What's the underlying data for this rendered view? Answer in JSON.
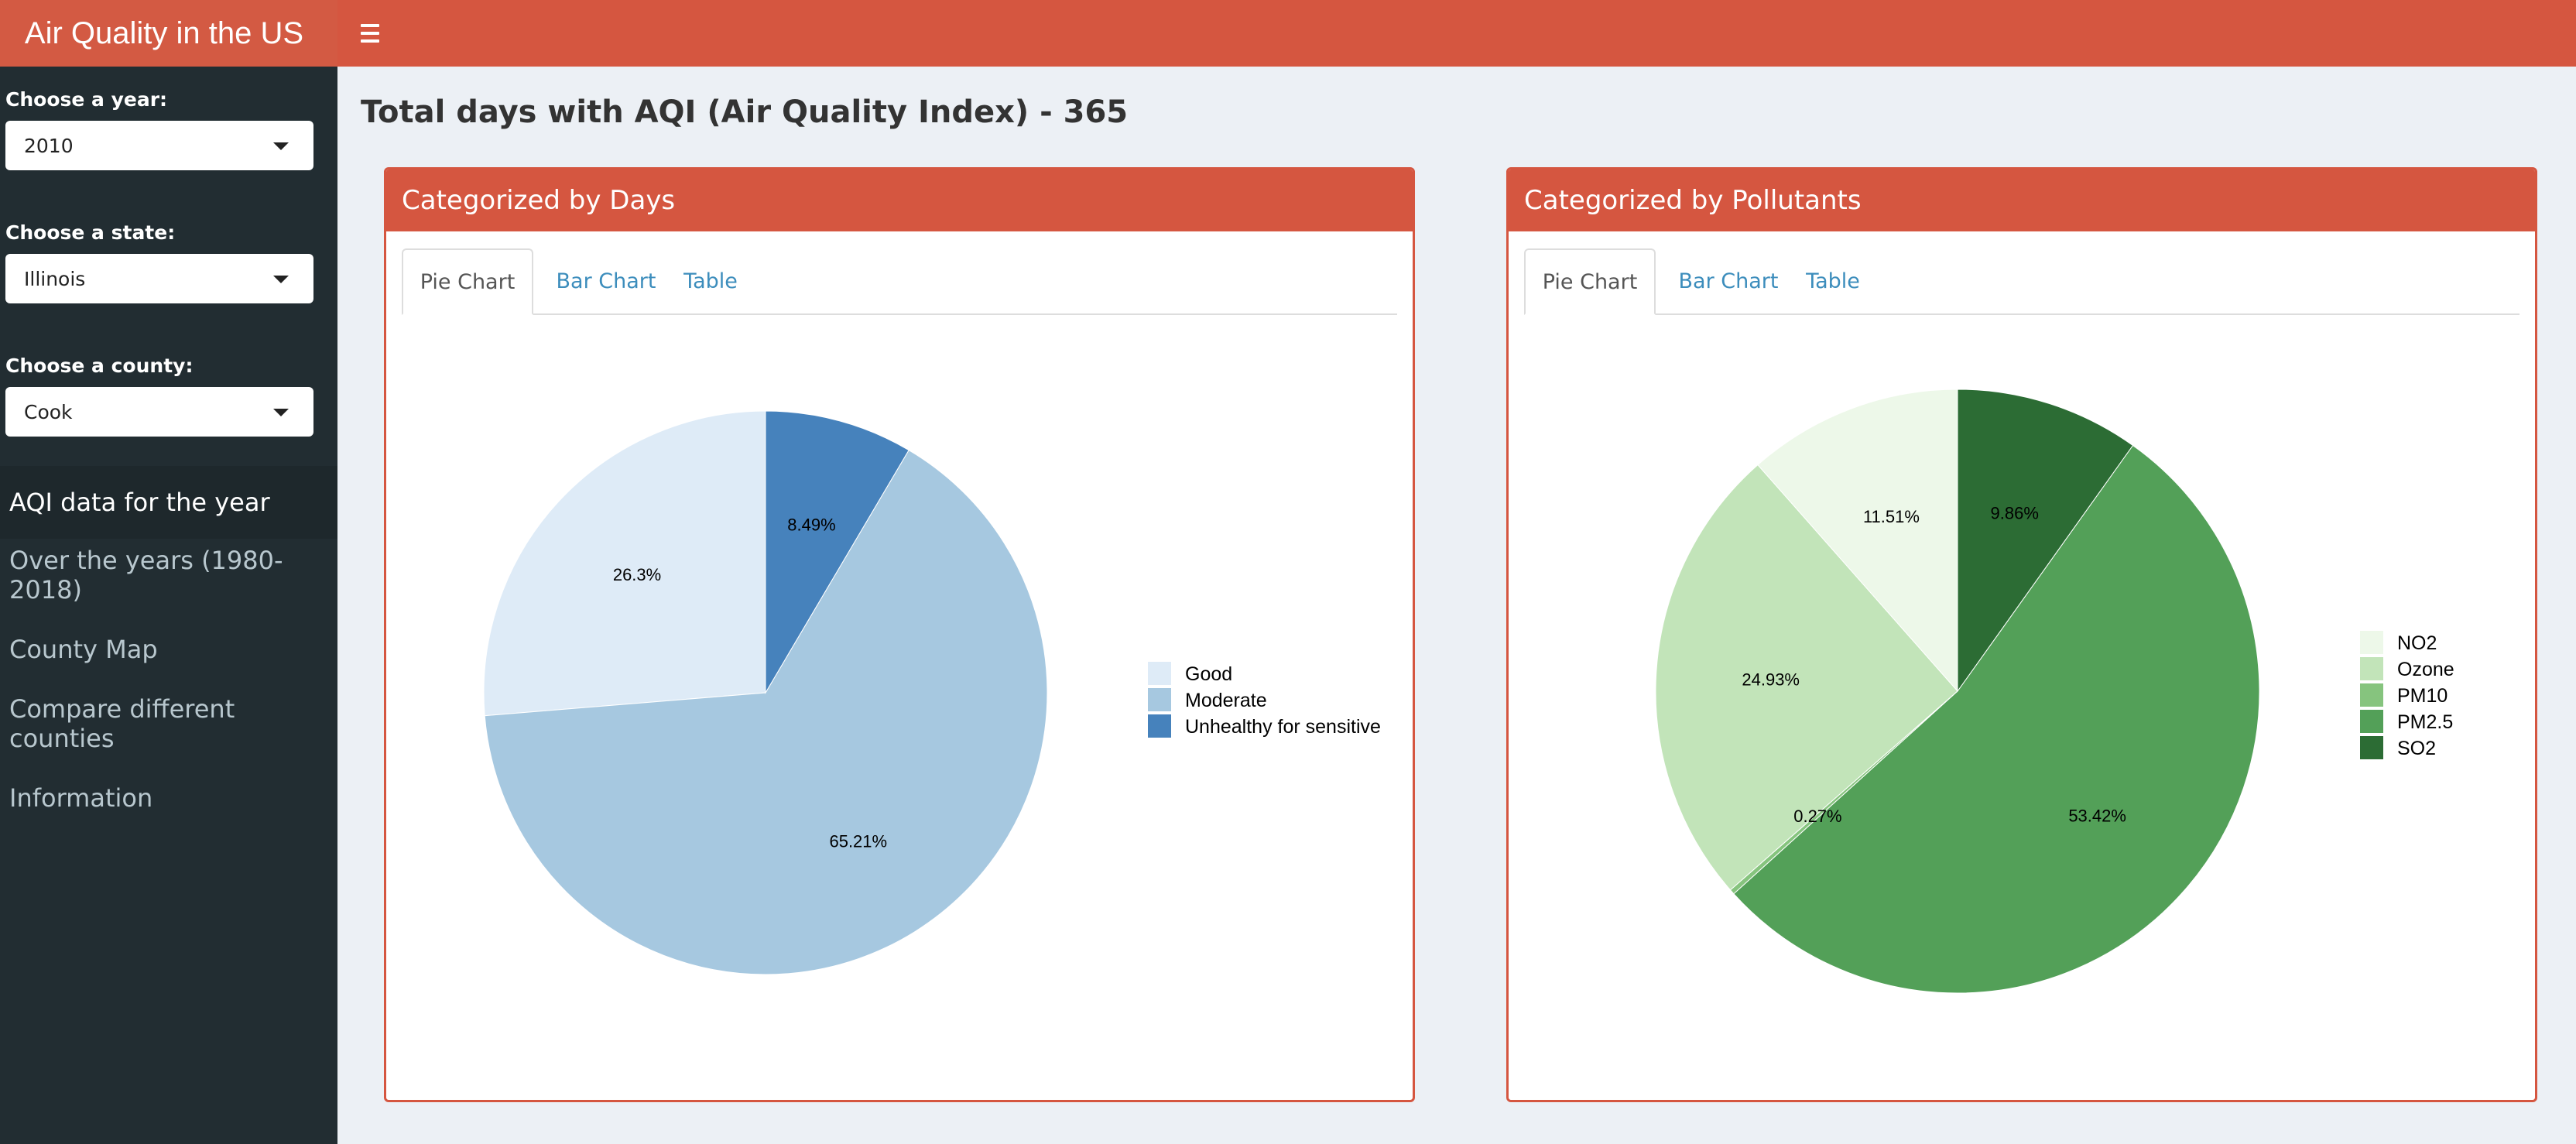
{
  "app": {
    "title": "Air Quality in the US"
  },
  "header": {
    "menu_icon": "hamburger-icon"
  },
  "sidebar": {
    "year": {
      "label": "Choose a year:",
      "value": "2010"
    },
    "state": {
      "label": "Choose a state:",
      "value": "Illinois"
    },
    "county": {
      "label": "Choose a county:",
      "value": "Cook"
    },
    "menu": [
      {
        "label": "AQI data for the year",
        "active": true
      },
      {
        "label": "Over the years (1980-2018)"
      },
      {
        "label": "County Map"
      },
      {
        "label": "Compare different counties"
      },
      {
        "label": "Information"
      }
    ]
  },
  "main": {
    "title": "Total days with AQI (Air Quality Index) - 365",
    "days_box": {
      "title": "Categorized by Days",
      "tabs": [
        "Pie Chart",
        "Bar Chart",
        "Table"
      ]
    },
    "pollutants_box": {
      "title": "Categorized by Pollutants",
      "tabs": [
        "Pie Chart",
        "Bar Chart",
        "Table"
      ]
    }
  },
  "chart_data": [
    {
      "type": "pie",
      "title": "",
      "legend_position": "right",
      "slices": [
        {
          "name": "Good",
          "value": 26.3,
          "label": "26.3%",
          "color": "#deebf7"
        },
        {
          "name": "Moderate",
          "value": 65.21,
          "label": "65.21%",
          "color": "#a6c8e0"
        },
        {
          "name": "Unhealthy for sensitive",
          "value": 8.49,
          "label": "8.49%",
          "color": "#4682bc"
        }
      ]
    },
    {
      "type": "pie",
      "title": "",
      "legend_position": "right",
      "slices": [
        {
          "name": "NO2",
          "value": 11.51,
          "label": "11.51%",
          "color": "#edf8e9"
        },
        {
          "name": "Ozone",
          "value": 24.93,
          "label": "24.93%",
          "color": "#c2e4b9"
        },
        {
          "name": "PM10",
          "value": 0.27,
          "label": "0.27%",
          "color": "#86c47e"
        },
        {
          "name": "PM2.5",
          "value": 53.42,
          "label": "53.42%",
          "color": "#53a058"
        },
        {
          "name": "SO2",
          "value": 9.86,
          "label": "9.86%",
          "color": "#2c6c34"
        }
      ]
    }
  ]
}
